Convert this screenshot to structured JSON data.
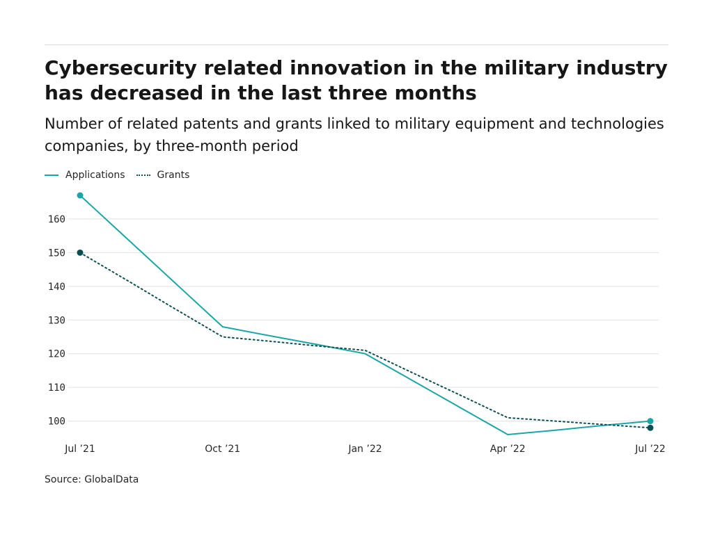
{
  "header": {
    "title": "Cybersecurity related innovation in the military industry has decreased in the last three months",
    "subtitle": "Number of related patents and grants linked to military equipment and technologies companies, by three-month period"
  },
  "legend": {
    "applications_label": "Applications",
    "grants_label": "Grants"
  },
  "footer": {
    "source": "Source: GlobalData"
  },
  "chart_data": {
    "type": "line",
    "title": "Cybersecurity related innovation in the military industry has decreased in the last three months",
    "subtitle": "Number of related patents and grants linked to military equipment and technologies companies, by three-month period",
    "xlabel": "",
    "ylabel": "",
    "x_tick_labels": [
      "Jul ’21",
      "Oct ’21",
      "Jan ’22",
      "Apr ’22",
      "Jul ’22"
    ],
    "y_ticks": [
      100,
      110,
      120,
      130,
      140,
      150,
      160
    ],
    "ylim": [
      96,
      167
    ],
    "grid": "horizontal",
    "legend_position": "top-left",
    "series": [
      {
        "name": "Applications",
        "style": "solid",
        "color": "#1aa6a6",
        "x": [
          "2021-07",
          "2021-08",
          "2021-09",
          "2021-10",
          "2021-11",
          "2021-12",
          "2022-01",
          "2022-02",
          "2022-03",
          "2022-04",
          "2022-05",
          "2022-06",
          "2022-07"
        ],
        "values": [
          167,
          154,
          141,
          128,
          125.3,
          122.7,
          120,
          112,
          104,
          96,
          97.3,
          98.7,
          100
        ]
      },
      {
        "name": "Grants",
        "style": "dotted",
        "color": "#0b4f52",
        "x": [
          "2021-07",
          "2021-08",
          "2021-09",
          "2021-10",
          "2021-11",
          "2021-12",
          "2022-01",
          "2022-02",
          "2022-03",
          "2022-04",
          "2022-05",
          "2022-06",
          "2022-07"
        ],
        "values": [
          150,
          141.7,
          133.3,
          125,
          123.7,
          122.3,
          121,
          114.3,
          107.7,
          101,
          100,
          99,
          98
        ]
      }
    ]
  }
}
